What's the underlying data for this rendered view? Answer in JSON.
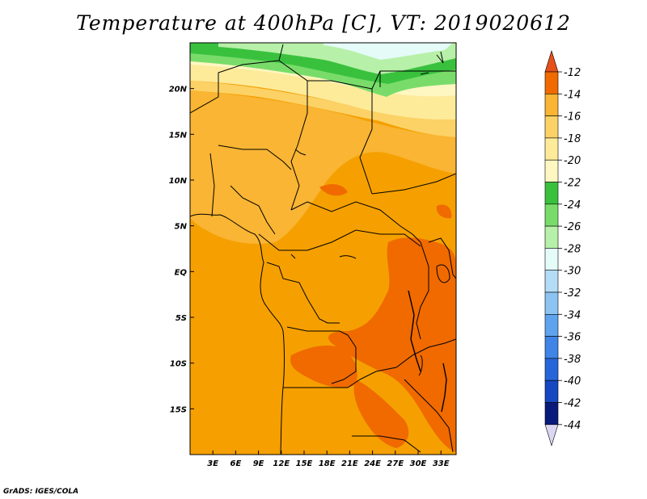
{
  "title": "Temperature at 400hPa [C], VT: 2019020612",
  "credit": "GrADS: IGES/COLA",
  "map": {
    "lon_range": [
      0,
      35
    ],
    "lat_range": [
      -20,
      25
    ],
    "lat_ticks": [
      {
        "value": 20,
        "label": "20N"
      },
      {
        "value": 15,
        "label": "15N"
      },
      {
        "value": 10,
        "label": "10N"
      },
      {
        "value": 5,
        "label": "5N"
      },
      {
        "value": 0,
        "label": "EQ"
      },
      {
        "value": -5,
        "label": "5S"
      },
      {
        "value": -10,
        "label": "10S"
      },
      {
        "value": -15,
        "label": "15S"
      }
    ],
    "lon_ticks": [
      {
        "value": 3,
        "label": "3E"
      },
      {
        "value": 6,
        "label": "6E"
      },
      {
        "value": 9,
        "label": "9E"
      },
      {
        "value": 12,
        "label": "12E"
      },
      {
        "value": 15,
        "label": "15E"
      },
      {
        "value": 18,
        "label": "18E"
      },
      {
        "value": 21,
        "label": "21E"
      },
      {
        "value": 24,
        "label": "24E"
      },
      {
        "value": 27,
        "label": "27E"
      },
      {
        "value": 30,
        "label": "30E"
      },
      {
        "value": 33,
        "label": "33E"
      }
    ]
  },
  "colorbar": {
    "levels": [
      {
        "label": "-12",
        "color": "#f06a00"
      },
      {
        "label": "-14",
        "color": "#f5a000"
      },
      {
        "label": "-16",
        "color": "#f9b533"
      },
      {
        "label": "-18",
        "color": "#fcd266"
      },
      {
        "label": "-20",
        "color": "#fdeb9a"
      },
      {
        "label": "-22",
        "color": "#fff7c2"
      },
      {
        "label": "-24",
        "color": "#39c13e"
      },
      {
        "label": "-26",
        "color": "#79dc6a"
      },
      {
        "label": "-28",
        "color": "#b7f0a8"
      },
      {
        "label": "-30",
        "color": "#e4fbf8"
      },
      {
        "label": "-32",
        "color": "#b4dcf6"
      },
      {
        "label": "-34",
        "color": "#8bc3f2"
      },
      {
        "label": "-36",
        "color": "#5fa3ee"
      },
      {
        "label": "-38",
        "color": "#3f84e6"
      },
      {
        "label": "-40",
        "color": "#2766d8"
      },
      {
        "label": "-42",
        "color": "#1648c2"
      },
      {
        "label": "-44",
        "color": "#0a1a7a"
      }
    ],
    "top_arrow_color": "#e8501a",
    "bottom_arrow_color": "#dcd6f2"
  }
}
